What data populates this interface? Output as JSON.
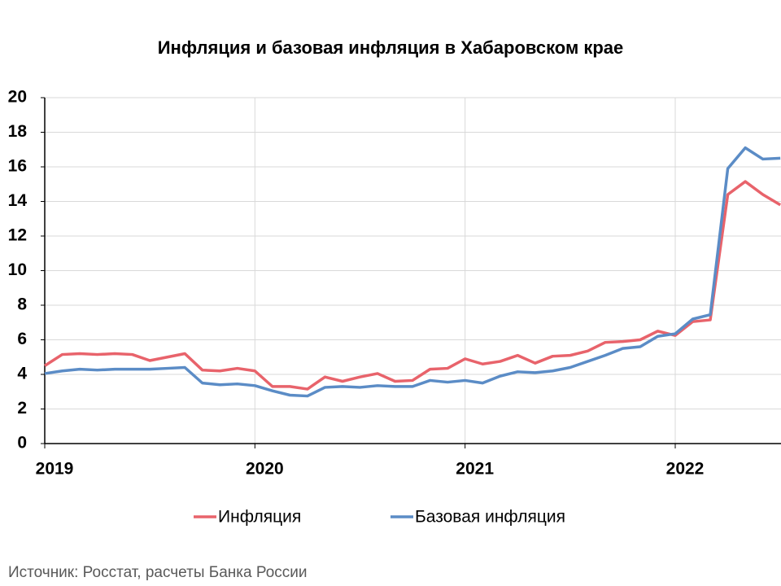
{
  "chart_data": {
    "type": "line",
    "title": "Инфляция и базовая инфляция в Хабаровском крае",
    "source": "Источник: Росстат, расчеты Банка России",
    "categories": [
      "2019",
      null,
      null,
      null,
      null,
      null,
      null,
      null,
      null,
      null,
      null,
      null,
      "2020",
      null,
      null,
      null,
      null,
      null,
      null,
      null,
      null,
      null,
      null,
      null,
      "2021",
      null,
      null,
      null,
      null,
      null,
      null,
      null,
      null,
      null,
      null,
      null,
      "2022",
      null,
      null,
      null,
      null,
      null,
      null
    ],
    "series": [
      {
        "name": "Инфляция",
        "color": "#e8636b",
        "values": [
          4.5,
          5.15,
          5.2,
          5.15,
          5.2,
          5.15,
          4.8,
          5.0,
          5.2,
          4.25,
          4.2,
          4.35,
          4.2,
          3.3,
          3.3,
          3.15,
          3.85,
          3.6,
          3.85,
          4.05,
          3.6,
          3.65,
          4.3,
          4.35,
          4.9,
          4.6,
          4.75,
          5.1,
          4.65,
          5.05,
          5.1,
          5.35,
          5.85,
          5.9,
          6.0,
          6.5,
          6.25,
          7.05,
          7.15,
          14.4,
          15.15,
          14.4,
          13.8
        ]
      },
      {
        "name": "Базовая инфляция",
        "color": "#5b8cc6",
        "values": [
          4.05,
          4.2,
          4.3,
          4.25,
          4.3,
          4.3,
          4.3,
          4.35,
          4.4,
          3.5,
          3.4,
          3.45,
          3.35,
          3.05,
          2.8,
          2.75,
          3.25,
          3.3,
          3.25,
          3.35,
          3.3,
          3.3,
          3.65,
          3.55,
          3.65,
          3.5,
          3.9,
          4.15,
          4.1,
          4.2,
          4.4,
          4.75,
          5.1,
          5.5,
          5.6,
          6.2,
          6.35,
          7.2,
          7.45,
          15.9,
          17.1,
          16.45,
          16.5
        ]
      }
    ],
    "ylim": [
      0,
      20
    ],
    "yticks": [
      0,
      2,
      4,
      6,
      8,
      10,
      12,
      14,
      16,
      18,
      20
    ],
    "grid": true,
    "legend": "bottom"
  }
}
